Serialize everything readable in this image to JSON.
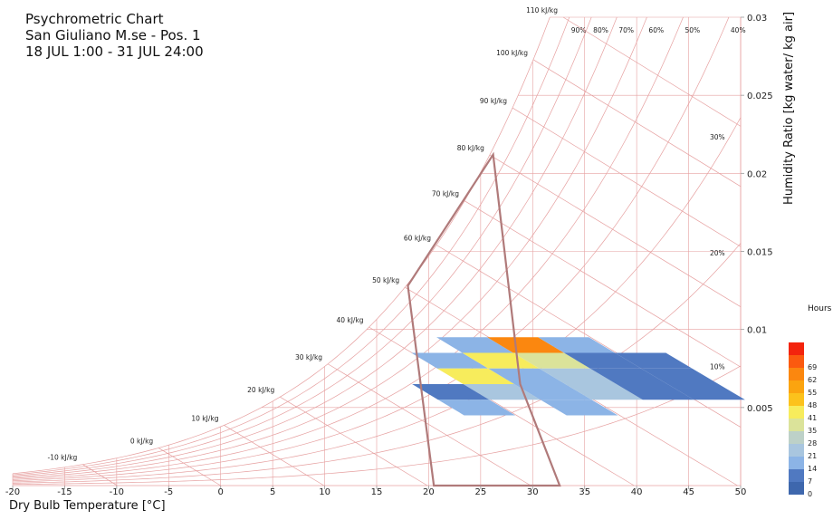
{
  "chart_data": {
    "type": "heatmap",
    "title": "Psychrometric Chart",
    "subtitle_lines": [
      "San Giuliano M.se - Pos. 1",
      "18 JUL 1:00 - 31 JUL 24:00"
    ],
    "xlabel": "Dry Bulb Temperature [°C]",
    "ylabel": "Humidity Ratio [kg water/ kg air]",
    "xlim": [
      -20,
      50
    ],
    "ylim": [
      0,
      0.03
    ],
    "x_ticks": [
      "-20",
      "-15",
      "-10",
      "-5",
      "0",
      "5",
      "10",
      "15",
      "20",
      "25",
      "30",
      "35",
      "40",
      "45",
      "50"
    ],
    "y_ticks": [
      {
        "value": 0.005,
        "label": "0.005"
      },
      {
        "value": 0.01,
        "label": "0.01"
      },
      {
        "value": 0.015,
        "label": "0.015"
      },
      {
        "value": 0.02,
        "label": "0.02"
      },
      {
        "value": 0.025,
        "label": "0.025"
      },
      {
        "value": 0.03,
        "label": "0.03"
      }
    ],
    "grid": true,
    "relative_humidity_curves": [
      {
        "rh": 10,
        "label": "10%"
      },
      {
        "rh": 20,
        "label": "20%"
      },
      {
        "rh": 30,
        "label": "30%"
      },
      {
        "rh": 40,
        "label": "40%"
      },
      {
        "rh": 50,
        "label": "50%"
      },
      {
        "rh": 60,
        "label": "60%"
      },
      {
        "rh": 70,
        "label": "70%"
      },
      {
        "rh": 80,
        "label": "80%"
      },
      {
        "rh": 90,
        "label": "90%"
      },
      {
        "rh": 100,
        "label": ""
      }
    ],
    "enthalpy_lines": [
      {
        "h": -10,
        "label": "-10 kJ/kg"
      },
      {
        "h": 0,
        "label": "0 kJ/kg"
      },
      {
        "h": 10,
        "label": "10 kJ/kg"
      },
      {
        "h": 20,
        "label": "20 kJ/kg"
      },
      {
        "h": 30,
        "label": "30 kJ/kg"
      },
      {
        "h": 40,
        "label": "40 kJ/kg"
      },
      {
        "h": 50,
        "label": "50 kJ/kg"
      },
      {
        "h": 60,
        "label": "60 kJ/kg"
      },
      {
        "h": 70,
        "label": "70 kJ/kg"
      },
      {
        "h": 80,
        "label": "80 kJ/kg"
      },
      {
        "h": 90,
        "label": "90 kJ/kg"
      },
      {
        "h": 100,
        "label": "100 kJ/kg"
      },
      {
        "h": 110,
        "label": "110 kJ/kg"
      }
    ],
    "comfort_zone": [
      [
        20.5,
        0
      ],
      [
        32.6,
        0
      ],
      [
        28.8,
        0.0065
      ],
      [
        26.2,
        0.0212
      ],
      [
        18.0,
        0.0128
      ]
    ],
    "comfort_zone_color": "#b07a7a",
    "bins": [
      {
        "h": 40,
        "w": 0.0075,
        "hours": 14
      },
      {
        "h": 40,
        "w": 0.0065,
        "hours": 41
      },
      {
        "h": 40,
        "w": 0.0055,
        "hours": 21
      },
      {
        "h": 45,
        "w": 0.0085,
        "hours": 14
      },
      {
        "h": 45,
        "w": 0.0075,
        "hours": 41
      },
      {
        "h": 45,
        "w": 0.0065,
        "hours": 14
      },
      {
        "h": 45,
        "w": 0.0055,
        "hours": 14
      },
      {
        "h": 45,
        "w": 0.0045,
        "hours": 14
      },
      {
        "h": 50,
        "w": 0.0085,
        "hours": 62
      },
      {
        "h": 50,
        "w": 0.0075,
        "hours": 35
      },
      {
        "h": 50,
        "w": 0.0065,
        "hours": 21
      },
      {
        "h": 50,
        "w": 0.0055,
        "hours": 21
      },
      {
        "h": 55,
        "w": 0.0085,
        "hours": 14
      },
      {
        "h": 55,
        "w": 0.0075,
        "hours": 7
      },
      {
        "h": 55,
        "w": 0.0065,
        "hours": 7
      },
      {
        "h": 55,
        "w": 0.0055,
        "hours": 7
      },
      {
        "h": 60,
        "w": 0.0075,
        "hours": 7
      },
      {
        "h": 60,
        "w": 0.0065,
        "hours": 7
      },
      {
        "h": 60,
        "w": 0.0055,
        "hours": 7
      },
      {
        "h": 35,
        "w": 0.0055,
        "hours": 7
      },
      {
        "h": 35,
        "w": 0.0045,
        "hours": 14
      }
    ],
    "legend": {
      "title": "Hours",
      "steps": [
        {
          "label": "0",
          "color": "#3e67ad"
        },
        {
          "label": "7",
          "color": "#5079c1"
        },
        {
          "label": "14",
          "color": "#8cb4e6"
        },
        {
          "label": "21",
          "color": "#a9c6df"
        },
        {
          "label": "28",
          "color": "#bdd1c8"
        },
        {
          "label": "35",
          "color": "#dbe39a"
        },
        {
          "label": "41",
          "color": "#f7ec5c"
        },
        {
          "label": "48",
          "color": "#fcc21c"
        },
        {
          "label": "55",
          "color": "#fba40f"
        },
        {
          "label": "62",
          "color": "#fb870f"
        },
        {
          "label": "69",
          "color": "#fb5a0f"
        },
        {
          "label": "",
          "color": "#f3240d"
        }
      ]
    },
    "grid_color": "#e6a0a0"
  }
}
